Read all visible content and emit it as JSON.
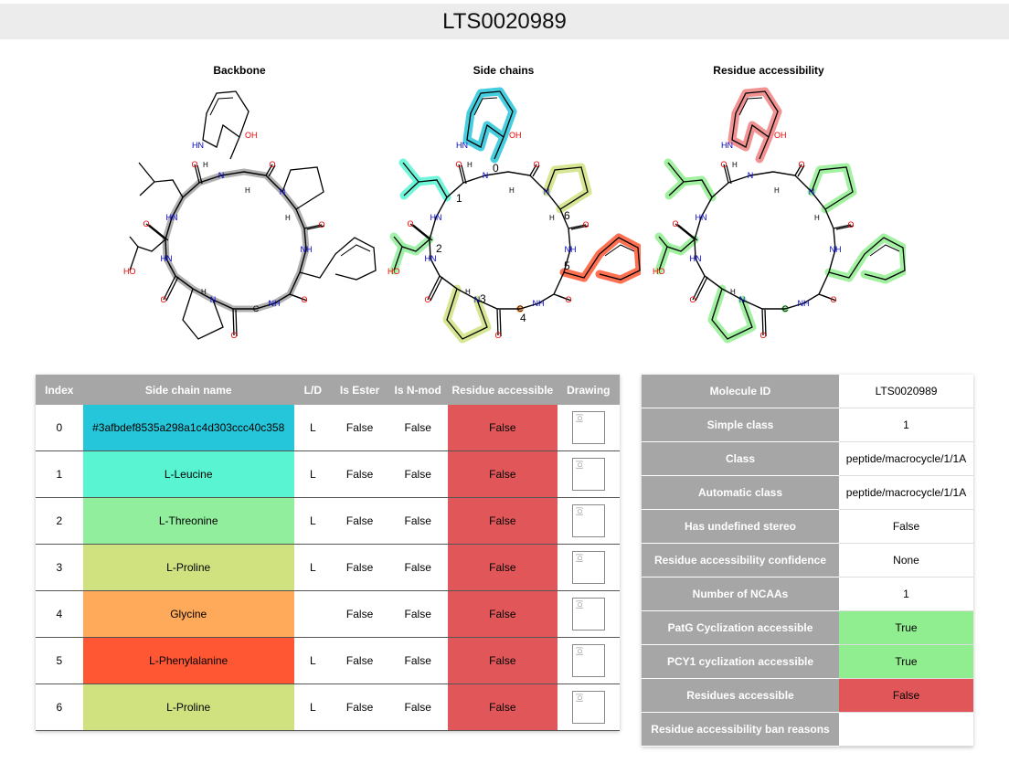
{
  "title": "LTS0020989",
  "panels": {
    "backbone": "Backbone",
    "side_chains": "Side chains",
    "accessibility": "Residue accessibility"
  },
  "residues_table": {
    "headers": [
      "Index",
      "Side chain name",
      "L/D",
      "Is Ester",
      "Is N-mod",
      "Residue accessible",
      "Drawing"
    ],
    "rows": [
      {
        "index": "0",
        "name": "#3afbdef8535a298a1c4d303ccc40c358",
        "ld": "L",
        "ester": "False",
        "nmod": "False",
        "accessible": "False",
        "drawing": "[O]",
        "color": "#26c6da",
        "acc_color": "#e15759"
      },
      {
        "index": "1",
        "name": "L-Leucine",
        "ld": "L",
        "ester": "False",
        "nmod": "False",
        "accessible": "False",
        "drawing": "[O]",
        "color": "#59f5d3",
        "acc_color": "#e15759"
      },
      {
        "index": "2",
        "name": "L-Threonine",
        "ld": "L",
        "ester": "False",
        "nmod": "False",
        "accessible": "False",
        "drawing": "[O]",
        "color": "#90ee9c",
        "acc_color": "#e15759"
      },
      {
        "index": "3",
        "name": "L-Proline",
        "ld": "L",
        "ester": "False",
        "nmod": "False",
        "accessible": "False",
        "drawing": "[O]",
        "color": "#cfe27f",
        "acc_color": "#e15759"
      },
      {
        "index": "4",
        "name": "Glycine",
        "ld": "",
        "ester": "False",
        "nmod": "False",
        "accessible": "False",
        "drawing": "[O]",
        "color": "#ffa95a",
        "acc_color": "#e15759"
      },
      {
        "index": "5",
        "name": "L-Phenylalanine",
        "ld": "L",
        "ester": "False",
        "nmod": "False",
        "accessible": "False",
        "drawing": "[O]",
        "color": "#ff5733",
        "acc_color": "#e15759"
      },
      {
        "index": "6",
        "name": "L-Proline",
        "ld": "L",
        "ester": "False",
        "nmod": "False",
        "accessible": "False",
        "drawing": "[O]",
        "color": "#cfe27f",
        "acc_color": "#e15759"
      }
    ]
  },
  "properties": [
    {
      "label": "Molecule ID",
      "value": "LTS0020989",
      "color": "#ffffff"
    },
    {
      "label": "Simple class",
      "value": "1",
      "color": "#ffffff"
    },
    {
      "label": "Class",
      "value": "peptide/macrocycle/1/1A",
      "color": "#ffffff"
    },
    {
      "label": "Automatic class",
      "value": "peptide/macrocycle/1/1A",
      "color": "#ffffff"
    },
    {
      "label": "Has undefined stereo",
      "value": "False",
      "color": "#ffffff"
    },
    {
      "label": "Residue accessibility confidence",
      "value": "None",
      "color": "#ffffff"
    },
    {
      "label": "Number of NCAAs",
      "value": "1",
      "color": "#ffffff"
    },
    {
      "label": "PatG Cyclization accessible",
      "value": "True",
      "color": "#90ee90"
    },
    {
      "label": "PCY1 cyclization accessible",
      "value": "True",
      "color": "#90ee90"
    },
    {
      "label": "Residues accessible",
      "value": "False",
      "color": "#e15759"
    },
    {
      "label": "Residue accessibility ban reasons",
      "value": "",
      "color": "#ffffff"
    }
  ],
  "atom_labels": {
    "oh": "OH",
    "hn": "HN",
    "nh": "NH",
    "n": "N",
    "o": "O",
    "h": "H",
    "ho": "HO",
    "c": "C"
  },
  "index_labels": [
    "0",
    "1",
    "2",
    "3",
    "4",
    "5",
    "6"
  ]
}
